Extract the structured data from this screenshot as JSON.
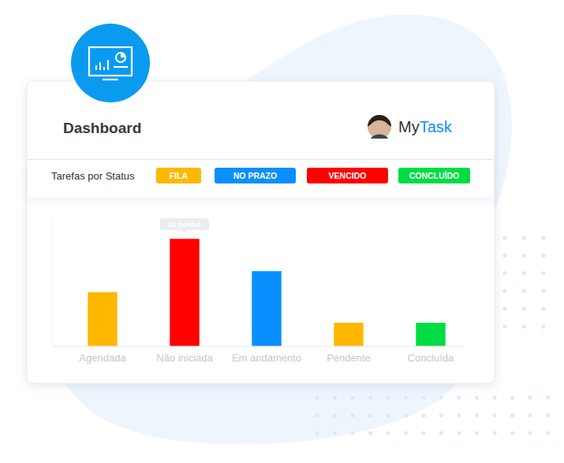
{
  "header": {
    "title": "Dashboard",
    "brand": [
      "My",
      "Task"
    ]
  },
  "chart_data": {
    "type": "bar",
    "title": "Tarefas por Status",
    "categories": [
      "Agendada",
      "Não iniciada",
      "Em andamento",
      "Pendente",
      "Concluída"
    ],
    "series": [
      {
        "name": "FILA",
        "color": "#ffb800",
        "values": [
          12.6,
          null,
          null,
          5.5,
          null
        ]
      },
      {
        "name": "NO PRAZO",
        "color": "#0a8fff",
        "values": [
          null,
          null,
          17.5,
          null,
          null
        ]
      },
      {
        "name": "VENCIDO",
        "color": "#ff0000",
        "values": [
          null,
          25,
          null,
          null,
          null
        ]
      },
      {
        "name": "CONCLUÍDO",
        "color": "#00dd44",
        "values": [
          null,
          null,
          null,
          null,
          5.5
        ]
      }
    ],
    "ylim": [
      0,
      30
    ],
    "tick_labels": "x",
    "annotations": [
      {
        "text": "25 tarefas",
        "x": "Não iniciada",
        "y": 25
      }
    ]
  }
}
